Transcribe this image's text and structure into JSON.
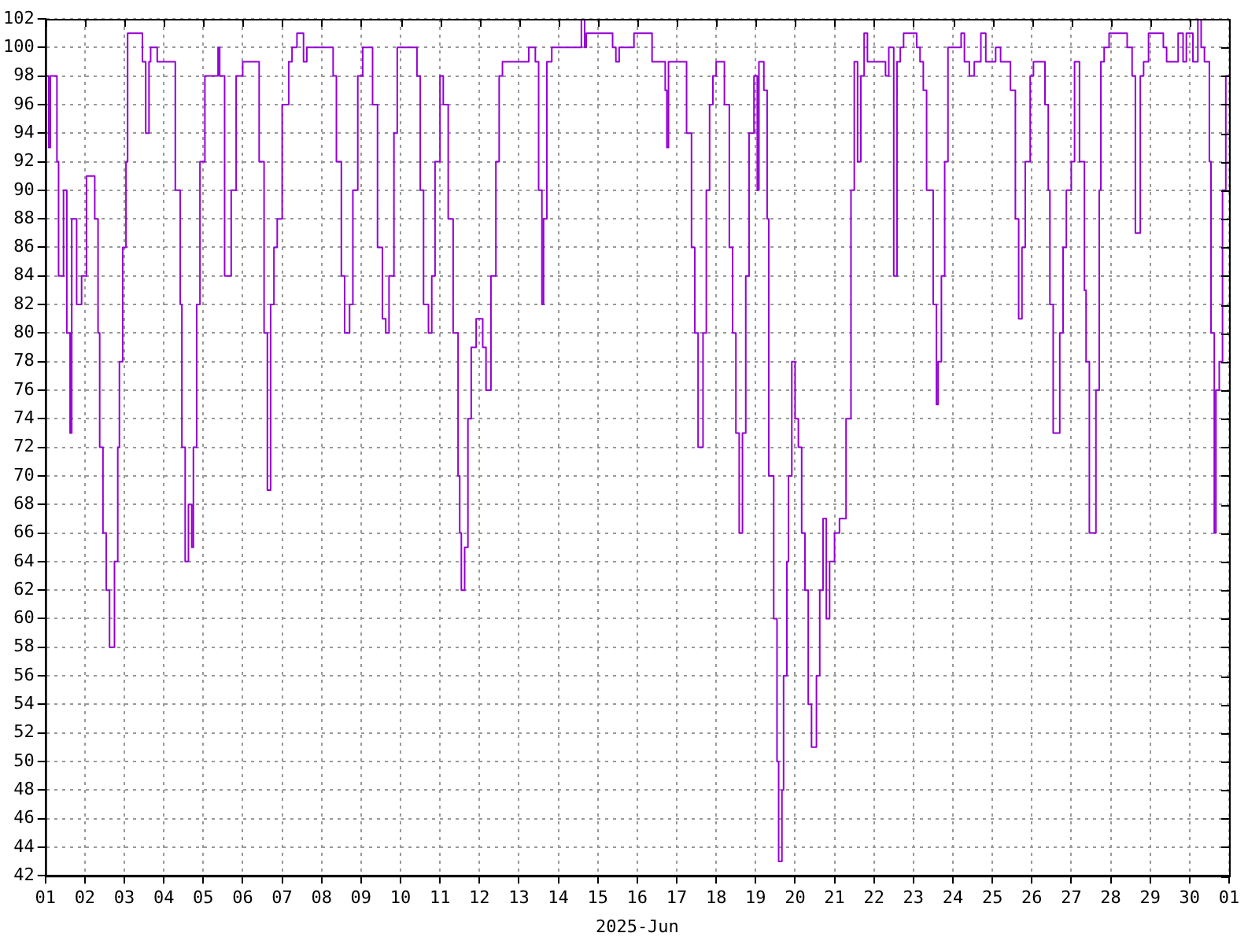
{
  "chart_data": {
    "type": "step",
    "xlabel": "2025-Jun",
    "grid": true,
    "legend": false,
    "marker": "none",
    "xlim": [
      "2025-06-01",
      "2025-07-01"
    ],
    "xticks": [
      {
        "value": "2025-06-01",
        "label": "01"
      },
      {
        "value": "2025-06-02",
        "label": "02"
      },
      {
        "value": "2025-06-03",
        "label": "03"
      },
      {
        "value": "2025-06-04",
        "label": "04"
      },
      {
        "value": "2025-06-05",
        "label": "05"
      },
      {
        "value": "2025-06-06",
        "label": "06"
      },
      {
        "value": "2025-06-07",
        "label": "07"
      },
      {
        "value": "2025-06-08",
        "label": "08"
      },
      {
        "value": "2025-06-09",
        "label": "09"
      },
      {
        "value": "2025-06-10",
        "label": "10"
      },
      {
        "value": "2025-06-11",
        "label": "11"
      },
      {
        "value": "2025-06-12",
        "label": "12"
      },
      {
        "value": "2025-06-13",
        "label": "13"
      },
      {
        "value": "2025-06-14",
        "label": "14"
      },
      {
        "value": "2025-06-15",
        "label": "15"
      },
      {
        "value": "2025-06-16",
        "label": "16"
      },
      {
        "value": "2025-06-17",
        "label": "17"
      },
      {
        "value": "2025-06-18",
        "label": "18"
      },
      {
        "value": "2025-06-19",
        "label": "19"
      },
      {
        "value": "2025-06-20",
        "label": "20"
      },
      {
        "value": "2025-06-21",
        "label": "21"
      },
      {
        "value": "2025-06-22",
        "label": "22"
      },
      {
        "value": "2025-06-23",
        "label": "23"
      },
      {
        "value": "2025-06-24",
        "label": "24"
      },
      {
        "value": "2025-06-25",
        "label": "25"
      },
      {
        "value": "2025-06-26",
        "label": "26"
      },
      {
        "value": "2025-06-27",
        "label": "27"
      },
      {
        "value": "2025-06-28",
        "label": "28"
      },
      {
        "value": "2025-06-29",
        "label": "29"
      },
      {
        "value": "2025-06-30",
        "label": "30"
      },
      {
        "value": "2025-07-01",
        "label": "01"
      }
    ],
    "ylim": [
      42,
      102
    ],
    "yticks": [
      42,
      44,
      46,
      48,
      50,
      52,
      54,
      56,
      58,
      60,
      62,
      64,
      66,
      68,
      70,
      72,
      74,
      76,
      78,
      80,
      82,
      84,
      86,
      88,
      90,
      92,
      94,
      96,
      98,
      100,
      102
    ],
    "series": [
      {
        "color": "#9400d3",
        "x": [
          "2025-06-01T00:00",
          "2025-06-01T02:00",
          "2025-06-01T03:00",
          "2025-06-01T04:00",
          "2025-06-01T07:00",
          "2025-06-01T08:00",
          "2025-06-01T11:00",
          "2025-06-01T13:00",
          "2025-06-01T15:00",
          "2025-06-01T16:00",
          "2025-06-01T19:00",
          "2025-06-01T22:00",
          "2025-06-02T01:00",
          "2025-06-02T06:00",
          "2025-06-02T08:00",
          "2025-06-02T09:00",
          "2025-06-02T11:00",
          "2025-06-02T13:00",
          "2025-06-02T15:00",
          "2025-06-02T18:00",
          "2025-06-02T20:00",
          "2025-06-02T21:00",
          "2025-06-02T23:00",
          "2025-06-03T01:00",
          "2025-06-03T02:00",
          "2025-06-03T04:00",
          "2025-06-03T11:00",
          "2025-06-03T13:00",
          "2025-06-03T15:00",
          "2025-06-03T16:00",
          "2025-06-03T20:00",
          "2025-06-03T23:00",
          "2025-06-04T07:00",
          "2025-06-04T10:00",
          "2025-06-04T11:00",
          "2025-06-04T13:00",
          "2025-06-04T15:00",
          "2025-06-04T17:00",
          "2025-06-04T18:00",
          "2025-06-04T20:00",
          "2025-06-04T22:00",
          "2025-06-05T01:00",
          "2025-06-05T04:00",
          "2025-06-05T09:00",
          "2025-06-05T10:00",
          "2025-06-05T13:00",
          "2025-06-05T17:00",
          "2025-06-05T20:00",
          "2025-06-06T00:00",
          "2025-06-06T03:00",
          "2025-06-06T10:00",
          "2025-06-06T13:00",
          "2025-06-06T15:00",
          "2025-06-06T17:00",
          "2025-06-06T19:00",
          "2025-06-06T21:00",
          "2025-06-07T00:00",
          "2025-06-07T04:00",
          "2025-06-07T06:00",
          "2025-06-07T09:00",
          "2025-06-07T13:00",
          "2025-06-07T15:00",
          "2025-06-07T23:00",
          "2025-06-08T07:00",
          "2025-06-08T09:00",
          "2025-06-08T12:00",
          "2025-06-08T14:00",
          "2025-06-08T17:00",
          "2025-06-08T19:00",
          "2025-06-08T22:00",
          "2025-06-09T01:00",
          "2025-06-09T04:00",
          "2025-06-09T07:00",
          "2025-06-09T10:00",
          "2025-06-09T13:00",
          "2025-06-09T15:00",
          "2025-06-09T17:00",
          "2025-06-09T20:00",
          "2025-06-09T22:00",
          "2025-06-10T00:00",
          "2025-06-10T10:00",
          "2025-06-10T12:00",
          "2025-06-10T14:00",
          "2025-06-10T17:00",
          "2025-06-10T19:00",
          "2025-06-10T21:00",
          "2025-06-11T00:00",
          "2025-06-11T02:00",
          "2025-06-11T05:00",
          "2025-06-11T08:00",
          "2025-06-11T11:00",
          "2025-06-11T12:00",
          "2025-06-11T13:00",
          "2025-06-11T15:00",
          "2025-06-11T17:00",
          "2025-06-11T19:00",
          "2025-06-11T22:00",
          "2025-06-12T02:00",
          "2025-06-12T04:00",
          "2025-06-12T07:00",
          "2025-06-12T10:00",
          "2025-06-12T12:00",
          "2025-06-12T14:00",
          "2025-06-12T17:00",
          "2025-06-13T06:00",
          "2025-06-13T10:00",
          "2025-06-13T12:00",
          "2025-06-13T14:00",
          "2025-06-13T15:00",
          "2025-06-13T17:00",
          "2025-06-13T20:00",
          "2025-06-13T23:00",
          "2025-06-14T14:00",
          "2025-06-14T16:00",
          "2025-06-14T17:00",
          "2025-06-14T21:00",
          "2025-06-15T09:00",
          "2025-06-15T11:00",
          "2025-06-15T13:00",
          "2025-06-15T15:00",
          "2025-06-15T22:00",
          "2025-06-16T01:00",
          "2025-06-16T09:00",
          "2025-06-16T13:00",
          "2025-06-16T17:00",
          "2025-06-16T18:00",
          "2025-06-16T19:00",
          "2025-06-16T21:00",
          "2025-06-17T06:00",
          "2025-06-17T09:00",
          "2025-06-17T11:00",
          "2025-06-17T13:00",
          "2025-06-17T16:00",
          "2025-06-17T18:00",
          "2025-06-17T20:00",
          "2025-06-17T22:00",
          "2025-06-18T00:00",
          "2025-06-18T05:00",
          "2025-06-18T08:00",
          "2025-06-18T10:00",
          "2025-06-18T12:00",
          "2025-06-18T14:00",
          "2025-06-18T16:00",
          "2025-06-18T18:00",
          "2025-06-18T20:00",
          "2025-06-18T23:00",
          "2025-06-19T01:00",
          "2025-06-19T02:00",
          "2025-06-19T05:00",
          "2025-06-19T07:00",
          "2025-06-19T08:00",
          "2025-06-19T11:00",
          "2025-06-19T13:00",
          "2025-06-19T14:00",
          "2025-06-19T16:00",
          "2025-06-19T17:00",
          "2025-06-19T19:00",
          "2025-06-19T20:00",
          "2025-06-19T22:00",
          "2025-06-20T00:00",
          "2025-06-20T02:00",
          "2025-06-20T04:00",
          "2025-06-20T06:00",
          "2025-06-20T08:00",
          "2025-06-20T10:00",
          "2025-06-20T13:00",
          "2025-06-20T15:00",
          "2025-06-20T17:00",
          "2025-06-20T19:00",
          "2025-06-20T21:00",
          "2025-06-21T00:00",
          "2025-06-21T03:00",
          "2025-06-21T07:00",
          "2025-06-21T10:00",
          "2025-06-21T12:00",
          "2025-06-21T14:00",
          "2025-06-21T16:00",
          "2025-06-21T18:00",
          "2025-06-21T20:00",
          "2025-06-21T22:00",
          "2025-06-22T07:00",
          "2025-06-22T09:00",
          "2025-06-22T12:00",
          "2025-06-22T14:00",
          "2025-06-22T16:00",
          "2025-06-22T18:00",
          "2025-06-23T02:00",
          "2025-06-23T04:00",
          "2025-06-23T06:00",
          "2025-06-23T08:00",
          "2025-06-23T12:00",
          "2025-06-23T14:00",
          "2025-06-23T15:00",
          "2025-06-23T17:00",
          "2025-06-23T19:00",
          "2025-06-23T21:00",
          "2025-06-24T01:00",
          "2025-06-24T05:00",
          "2025-06-24T07:00",
          "2025-06-24T10:00",
          "2025-06-24T13:00",
          "2025-06-24T17:00",
          "2025-06-24T20:00",
          "2025-06-24T22:00",
          "2025-06-25T02:00",
          "2025-06-25T05:00",
          "2025-06-25T11:00",
          "2025-06-25T14:00",
          "2025-06-25T16:00",
          "2025-06-25T18:00",
          "2025-06-25T20:00",
          "2025-06-25T23:00",
          "2025-06-26T01:00",
          "2025-06-26T08:00",
          "2025-06-26T10:00",
          "2025-06-26T11:00",
          "2025-06-26T13:00",
          "2025-06-26T17:00",
          "2025-06-26T19:00",
          "2025-06-26T21:00",
          "2025-06-27T00:00",
          "2025-06-27T02:00",
          "2025-06-27T05:00",
          "2025-06-27T08:00",
          "2025-06-27T09:00",
          "2025-06-27T11:00",
          "2025-06-27T15:00",
          "2025-06-27T17:00",
          "2025-06-27T18:00",
          "2025-06-27T20:00",
          "2025-06-27T23:00",
          "2025-06-28T02:00",
          "2025-06-28T10:00",
          "2025-06-28T13:00",
          "2025-06-28T15:00",
          "2025-06-28T18:00",
          "2025-06-28T20:00",
          "2025-06-28T23:00",
          "2025-06-29T02:00",
          "2025-06-29T08:00",
          "2025-06-29T10:00",
          "2025-06-29T17:00",
          "2025-06-29T20:00",
          "2025-06-29T22:00",
          "2025-06-30T02:00",
          "2025-06-30T05:00",
          "2025-06-30T07:00",
          "2025-06-30T09:00",
          "2025-06-30T12:00",
          "2025-06-30T13:00",
          "2025-06-30T15:00",
          "2025-06-30T16:00",
          "2025-06-30T18:00",
          "2025-06-30T20:00",
          "2025-06-30T22:00",
          "2025-07-01T00:00"
        ],
        "values": [
          92,
          98,
          93,
          98,
          98,
          92,
          84,
          90,
          80,
          73,
          88,
          82,
          84,
          91,
          88,
          80,
          72,
          66,
          62,
          58,
          64,
          72,
          78,
          86,
          92,
          101,
          101,
          99,
          94,
          99,
          100,
          99,
          99,
          90,
          82,
          72,
          64,
          68,
          65,
          72,
          82,
          92,
          98,
          98,
          100,
          98,
          84,
          90,
          98,
          99,
          99,
          92,
          80,
          69,
          82,
          86,
          88,
          96,
          99,
          100,
          101,
          99,
          100,
          100,
          98,
          92,
          84,
          80,
          82,
          90,
          98,
          100,
          100,
          96,
          86,
          81,
          80,
          84,
          94,
          100,
          100,
          98,
          90,
          82,
          80,
          84,
          92,
          98,
          96,
          88,
          80,
          70,
          66,
          62,
          65,
          74,
          79,
          81,
          79,
          76,
          84,
          92,
          98,
          99,
          99,
          100,
          99,
          90,
          82,
          88,
          99,
          100,
          100,
          102,
          100,
          101,
          101,
          100,
          99,
          100,
          100,
          101,
          101,
          99,
          99,
          97,
          93,
          99,
          99,
          94,
          86,
          80,
          72,
          80,
          90,
          96,
          98,
          99,
          96,
          86,
          80,
          73,
          66,
          73,
          84,
          94,
          98,
          90,
          99,
          97,
          88,
          70,
          60,
          50,
          43,
          48,
          56,
          64,
          70,
          78,
          74,
          72,
          66,
          62,
          54,
          51,
          56,
          62,
          67,
          60,
          64,
          66,
          67,
          74,
          90,
          99,
          92,
          98,
          101,
          99,
          99,
          98,
          100,
          84,
          99,
          100,
          101,
          100,
          99,
          97,
          90,
          82,
          75,
          78,
          84,
          92,
          100,
          100,
          101,
          99,
          98,
          99,
          101,
          99,
          99,
          100,
          99,
          97,
          88,
          81,
          86,
          92,
          98,
          99,
          96,
          90,
          82,
          73,
          80,
          86,
          90,
          92,
          99,
          92,
          83,
          78,
          66,
          76,
          90,
          99,
          100,
          101,
          101,
          100,
          98,
          87,
          98,
          99,
          101,
          101,
          100,
          99,
          101,
          99,
          101,
          99,
          102,
          100,
          99,
          92,
          80,
          66,
          76,
          78,
          90,
          98
        ]
      }
    ]
  }
}
